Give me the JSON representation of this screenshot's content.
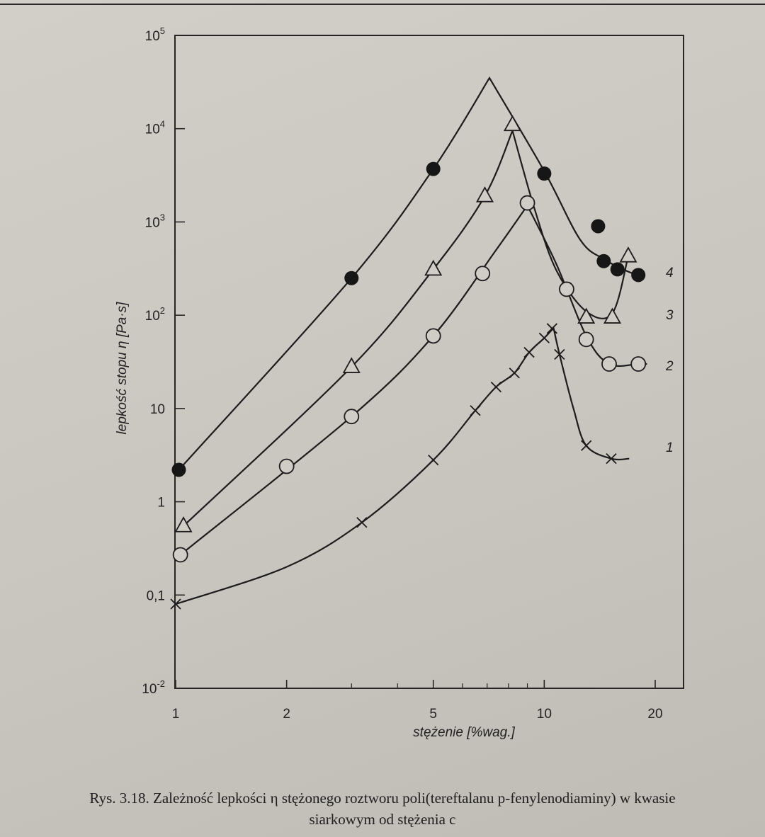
{
  "chart_data": {
    "type": "scatter",
    "x_scale": "log",
    "y_scale": "log",
    "xlim": [
      1,
      20
    ],
    "ylim": [
      0.01,
      100000
    ],
    "xlabel": "stężenie  [%wag.]",
    "ylabel": "lepkość stopu η  [Pa·s]",
    "x_ticks": [
      {
        "value": 1,
        "label": "1"
      },
      {
        "value": 2,
        "label": "2"
      },
      {
        "value": 5,
        "label": "5"
      },
      {
        "value": 10,
        "label": "10"
      },
      {
        "value": 20,
        "label": "20"
      }
    ],
    "y_ticks": [
      {
        "value": 0.01,
        "base": "10",
        "exp": "-2"
      },
      {
        "value": 0.1,
        "base": "0,1",
        "exp": ""
      },
      {
        "value": 1,
        "base": "1",
        "exp": ""
      },
      {
        "value": 10,
        "base": "10",
        "exp": ""
      },
      {
        "value": 100,
        "base": "10",
        "exp": "2"
      },
      {
        "value": 1000,
        "base": "10",
        "exp": "3"
      },
      {
        "value": 10000,
        "base": "10",
        "exp": "4"
      },
      {
        "value": 100000,
        "base": "10",
        "exp": "5"
      }
    ],
    "grid": false,
    "series": [
      {
        "name": "4",
        "marker": "filled-circle",
        "points": [
          [
            1.02,
            2.2
          ],
          [
            3.0,
            250
          ],
          [
            5.0,
            3700
          ],
          [
            10.0,
            3300
          ],
          [
            14.0,
            900
          ],
          [
            14.5,
            380
          ],
          [
            15.8,
            310
          ],
          [
            18.0,
            270
          ]
        ],
        "curve": [
          [
            1.02,
            2.2
          ],
          [
            3.0,
            250
          ],
          [
            5.0,
            3700
          ],
          [
            7.1,
            35000
          ],
          [
            10.0,
            3500
          ],
          [
            12.5,
            650
          ],
          [
            14.5,
            400
          ],
          [
            17.0,
            290
          ],
          [
            18.8,
            260
          ]
        ]
      },
      {
        "name": "3",
        "marker": "open-triangle",
        "points": [
          [
            1.05,
            0.55
          ],
          [
            3.0,
            28
          ],
          [
            5.0,
            310
          ],
          [
            6.9,
            1900
          ],
          [
            8.2,
            11000
          ],
          [
            13.0,
            95
          ],
          [
            15.3,
            95
          ],
          [
            16.9,
            430
          ]
        ],
        "curve": [
          [
            1.05,
            0.55
          ],
          [
            3.0,
            28
          ],
          [
            5.0,
            310
          ],
          [
            6.9,
            1900
          ],
          [
            8.2,
            9500
          ],
          [
            9.4,
            1400
          ],
          [
            10.8,
            300
          ],
          [
            13.0,
            110
          ],
          [
            15.3,
            105
          ],
          [
            16.9,
            430
          ]
        ]
      },
      {
        "name": "2",
        "marker": "open-circle",
        "points": [
          [
            1.03,
            0.27
          ],
          [
            2.0,
            2.4
          ],
          [
            3.0,
            8.2
          ],
          [
            5.0,
            60
          ],
          [
            6.8,
            280
          ],
          [
            9.0,
            1600
          ],
          [
            11.5,
            190
          ],
          [
            13.0,
            55
          ],
          [
            15.0,
            30
          ],
          [
            18.0,
            30
          ]
        ],
        "curve": [
          [
            1.03,
            0.27
          ],
          [
            3.0,
            8.2
          ],
          [
            5.0,
            60
          ],
          [
            7.4,
            500
          ],
          [
            9.0,
            1500
          ],
          [
            10.8,
            350
          ],
          [
            13.0,
            60
          ],
          [
            15.0,
            30
          ],
          [
            18.0,
            30
          ],
          [
            19.0,
            30
          ]
        ]
      },
      {
        "name": "1",
        "marker": "cross",
        "points": [
          [
            1.0,
            0.08
          ],
          [
            3.2,
            0.6
          ],
          [
            5.0,
            2.8
          ],
          [
            6.5,
            9.5
          ],
          [
            7.4,
            17
          ],
          [
            8.3,
            24
          ],
          [
            9.1,
            40
          ],
          [
            10.0,
            57
          ],
          [
            10.5,
            72
          ],
          [
            11.0,
            38
          ],
          [
            13.0,
            4.0
          ],
          [
            15.2,
            2.9
          ]
        ],
        "curve": [
          [
            1.0,
            0.08
          ],
          [
            2.0,
            0.2
          ],
          [
            3.2,
            0.6
          ],
          [
            5.0,
            2.8
          ],
          [
            6.5,
            9.5
          ],
          [
            7.4,
            17
          ],
          [
            8.3,
            24
          ],
          [
            9.1,
            40
          ],
          [
            10.0,
            57
          ],
          [
            10.6,
            73
          ],
          [
            11.0,
            38
          ],
          [
            12.0,
            10
          ],
          [
            13.0,
            4.0
          ],
          [
            15.2,
            2.9
          ],
          [
            17.0,
            2.9
          ]
        ]
      }
    ]
  },
  "caption": {
    "line1": "Rys. 3.18. Zależność lepkości η stężonego roztworu poli(tereftalanu p-fenylenodiaminy) w kwasie",
    "line2": "siarkowym od stężenia c"
  }
}
